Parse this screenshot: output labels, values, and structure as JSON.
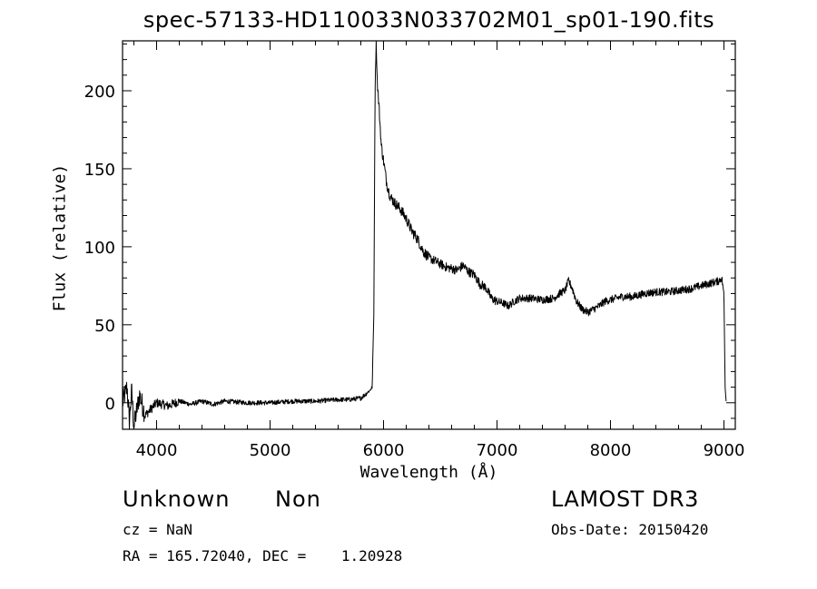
{
  "header": {
    "title": "spec-57133-HD110033N033702M01_sp01-190.fits"
  },
  "info": {
    "object_class": "Unknown",
    "object_subclass": "Non",
    "survey": "LAMOST DR3",
    "cz": "cz = NaN",
    "obs_date": "Obs-Date: 20150420",
    "radec": "RA = 165.72040, DEC =    1.20928"
  },
  "chart_data": {
    "type": "line",
    "title": "spec-57133-HD110033N033702M01_sp01-190.fits",
    "xlabel": "Wavelength (Å)",
    "ylabel": "Flux (relative)",
    "xlim": [
      3700,
      9100
    ],
    "ylim": [
      -17,
      232
    ],
    "xticks": [
      4000,
      5000,
      6000,
      7000,
      8000,
      9000
    ],
    "yticks": [
      0,
      50,
      100,
      150,
      200
    ],
    "grid": false,
    "legend": "none",
    "line_color": "#000000",
    "series": [
      {
        "x": [
          3700,
          3740,
          3760,
          3780,
          3800,
          3850,
          3900,
          4000,
          4100,
          4200,
          4300,
          4400,
          4500,
          4600,
          4800,
          5000,
          5200,
          5400,
          5600,
          5700,
          5800,
          5850,
          5880,
          5900,
          5915,
          5925,
          5935,
          5945,
          5960,
          5980,
          6000,
          6030,
          6060,
          6100,
          6150,
          6200,
          6250,
          6300,
          6350,
          6400,
          6450,
          6500,
          6550,
          6600,
          6650,
          6700,
          6750,
          6800,
          6850,
          6900,
          6950,
          7000,
          7050,
          7100,
          7150,
          7200,
          7300,
          7400,
          7500,
          7550,
          7600,
          7630,
          7660,
          7700,
          7750,
          7800,
          7850,
          7900,
          7950,
          8000,
          8100,
          8200,
          8300,
          8400,
          8500,
          8600,
          8700,
          8800,
          8850,
          8900,
          8950,
          8980,
          9000,
          9010,
          9020
        ],
        "y": [
          0,
          10,
          -12,
          8,
          -15,
          5,
          -8,
          0,
          -2,
          1,
          -1,
          1,
          -1,
          1,
          0,
          0,
          1,
          1,
          2,
          2,
          3,
          6,
          8,
          10,
          60,
          200,
          232,
          205,
          190,
          165,
          155,
          140,
          132,
          128,
          124,
          118,
          110,
          105,
          97,
          93,
          91,
          89,
          87,
          86,
          85,
          88,
          84,
          82,
          76,
          74,
          67,
          65,
          64,
          62,
          65,
          67,
          67,
          66,
          67,
          70,
          72,
          78,
          74,
          65,
          60,
          58,
          60,
          62,
          65,
          66,
          68,
          68,
          70,
          71,
          71,
          72,
          73,
          75,
          76,
          77,
          78,
          80,
          70,
          10,
          0
        ]
      }
    ]
  }
}
